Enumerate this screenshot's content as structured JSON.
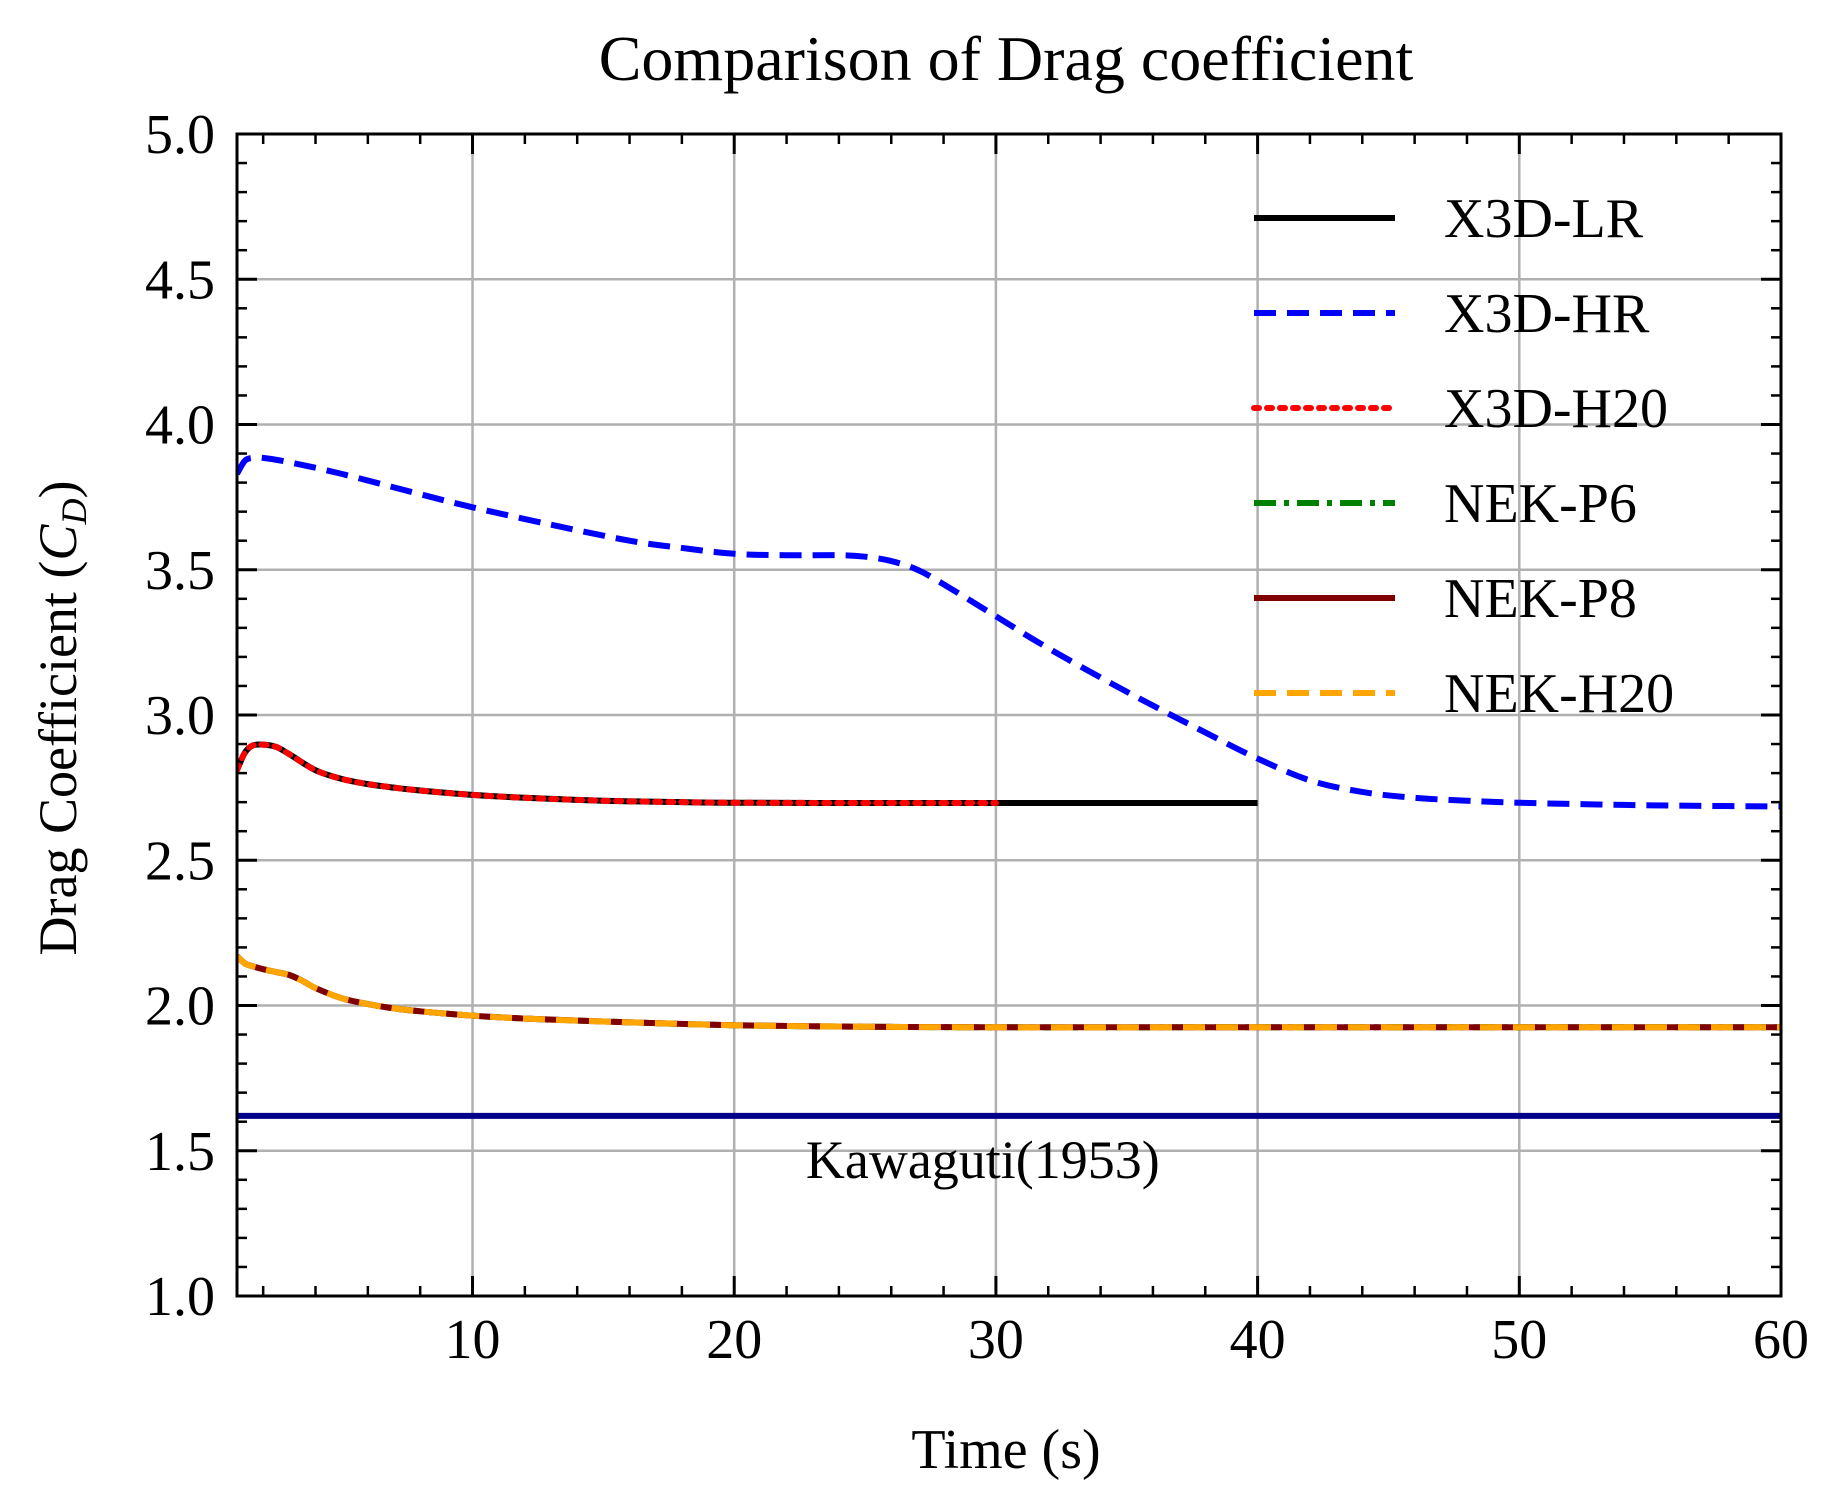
{
  "chart_data": {
    "type": "line",
    "title": "Comparison of Drag coefficient",
    "xlabel": "Time (s)",
    "ylabel": {
      "prefix": "Drag Coefficient (",
      "symbol": "C",
      "subscript": "D",
      "suffix": ")"
    },
    "xlim": [
      1,
      60
    ],
    "ylim": [
      1.0,
      5.0
    ],
    "x_ticks": [
      10,
      20,
      30,
      40,
      50,
      60
    ],
    "x_tick_labels": [
      "10",
      "20",
      "30",
      "40",
      "50",
      "60"
    ],
    "y_ticks": [
      1.0,
      1.5,
      2.0,
      2.5,
      3.0,
      3.5,
      4.0,
      4.5,
      5.0
    ],
    "y_tick_labels": [
      "1.0",
      "1.5",
      "2.0",
      "2.5",
      "3.0",
      "3.5",
      "4.0",
      "4.5",
      "5.0"
    ],
    "grid": true,
    "legend_position": "top-right",
    "series": [
      {
        "name": "X3D-LR",
        "color": "#000000",
        "dash": "solid",
        "x": [
          1.0,
          1.3,
          1.6,
          2.0,
          2.5,
          3.0,
          4.0,
          5.0,
          6.0,
          7.0,
          8.0,
          10.0,
          12.0,
          15.0,
          18.0,
          20.0,
          25.0,
          30.0,
          35.0,
          40.0
        ],
        "y": [
          2.81,
          2.87,
          2.895,
          2.898,
          2.89,
          2.865,
          2.81,
          2.78,
          2.762,
          2.75,
          2.74,
          2.725,
          2.715,
          2.705,
          2.7,
          2.698,
          2.697,
          2.697,
          2.697,
          2.697
        ]
      },
      {
        "name": "X3D-HR",
        "color": "#0000ff",
        "dash": "dashed",
        "x": [
          1.0,
          1.3,
          1.6,
          2.0,
          3.0,
          5.0,
          8.0,
          10.0,
          13.0,
          16.0,
          18.0,
          20.0,
          22.0,
          24.0,
          25.0,
          26.0,
          27.0,
          28.0,
          30.0,
          32.0,
          35.0,
          38.0,
          40.0,
          42.0,
          44.0,
          46.0,
          48.0,
          50.0,
          53.0,
          56.0,
          60.0
        ],
        "y": [
          3.83,
          3.875,
          3.885,
          3.885,
          3.87,
          3.83,
          3.76,
          3.715,
          3.655,
          3.6,
          3.575,
          3.555,
          3.55,
          3.55,
          3.545,
          3.53,
          3.5,
          3.45,
          3.34,
          3.23,
          3.08,
          2.94,
          2.85,
          2.775,
          2.735,
          2.715,
          2.705,
          2.698,
          2.692,
          2.688,
          2.685
        ]
      },
      {
        "name": "X3D-H20",
        "color": "#ff0000",
        "dash": "dotted",
        "x": [
          1.0,
          1.3,
          1.6,
          2.0,
          2.5,
          3.0,
          4.0,
          5.0,
          6.0,
          7.0,
          8.0,
          10.0,
          12.0,
          15.0,
          18.0,
          20.0,
          25.0,
          30.0
        ],
        "y": [
          2.81,
          2.87,
          2.895,
          2.898,
          2.89,
          2.865,
          2.81,
          2.78,
          2.762,
          2.75,
          2.74,
          2.725,
          2.715,
          2.705,
          2.7,
          2.698,
          2.697,
          2.697
        ]
      },
      {
        "name": "NEK-P6",
        "color": "#008000",
        "dash": "dashdot",
        "x": [
          1.0,
          1.3,
          1.6,
          2.0,
          2.5,
          3.0,
          3.5,
          4.0,
          5.0,
          6.0,
          7.0,
          8.0,
          10.0,
          12.0,
          15.0,
          20.0,
          25.0,
          30.0,
          40.0,
          50.0,
          60.0
        ],
        "y": [
          2.17,
          2.145,
          2.135,
          2.125,
          2.115,
          2.105,
          2.085,
          2.06,
          2.025,
          2.005,
          1.99,
          1.98,
          1.965,
          1.955,
          1.945,
          1.932,
          1.927,
          1.925,
          1.925,
          1.925,
          1.925
        ]
      },
      {
        "name": "NEK-P8",
        "color": "#800000",
        "dash": "solid",
        "x": [
          1.0,
          1.3,
          1.6,
          2.0,
          2.5,
          3.0,
          3.5,
          4.0,
          5.0,
          6.0,
          7.0,
          8.0,
          10.0,
          12.0,
          15.0,
          20.0,
          25.0,
          30.0,
          40.0,
          50.0,
          60.0
        ],
        "y": [
          2.17,
          2.145,
          2.135,
          2.125,
          2.115,
          2.105,
          2.085,
          2.06,
          2.025,
          2.005,
          1.99,
          1.98,
          1.965,
          1.955,
          1.945,
          1.932,
          1.927,
          1.925,
          1.925,
          1.925,
          1.925
        ]
      },
      {
        "name": "NEK-H20",
        "color": "#ffa500",
        "dash": "dashed",
        "x": [
          1.0,
          1.3,
          1.6,
          2.0,
          2.5,
          3.0,
          3.5,
          4.0,
          5.0,
          6.0,
          7.0,
          8.0,
          10.0,
          12.0,
          15.0,
          20.0,
          25.0,
          30.0,
          40.0,
          50.0,
          60.0
        ],
        "y": [
          2.17,
          2.145,
          2.135,
          2.125,
          2.115,
          2.105,
          2.085,
          2.06,
          2.025,
          2.005,
          1.99,
          1.98,
          1.965,
          1.955,
          1.945,
          1.932,
          1.927,
          1.925,
          1.925,
          1.925,
          1.925
        ]
      }
    ],
    "reference_line": {
      "label": "Kawaguti(1953)",
      "value": 1.62,
      "color": "#00008b"
    }
  }
}
